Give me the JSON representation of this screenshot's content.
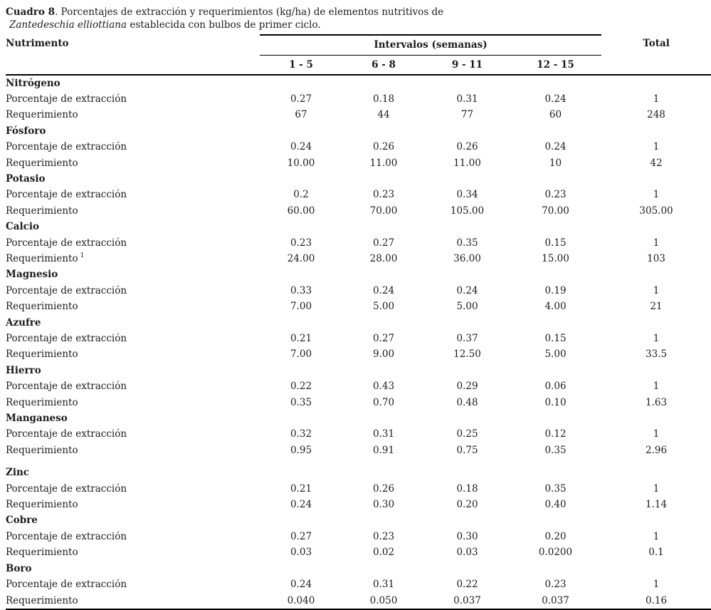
{
  "title": {
    "caption_label": "Cuadro 8",
    "caption_rest": ". Porcentajes de extracción y requerimientos (kg/ha) de elementos nutritivos de",
    "species": "Zantedeschia elliottiana",
    "caption_line2_rest": " establecida con bulbos de primer ciclo."
  },
  "table": {
    "nutrient_header": "Nutrimento",
    "intervals_header": "Intervalos (semanas)",
    "total_header": "Total",
    "interval_labels": [
      "1 - 5",
      "6 - 8",
      "9 - 11",
      "12 - 15"
    ],
    "row_labels": {
      "extraction": "Porcentaje de extracción",
      "requirement": "Requerimiento"
    },
    "groups": [
      {
        "name": "Nitrógeno",
        "extraction": [
          "0.27",
          "0.18",
          "0.31",
          "0.24",
          "1"
        ],
        "requirement": [
          "67",
          "44",
          "77",
          "60",
          "248"
        ],
        "req_footnote": "",
        "extra_gap": false
      },
      {
        "name": "Fósforo",
        "extraction": [
          "0.24",
          "0.26",
          "0.26",
          "0.24",
          "1"
        ],
        "requirement": [
          "10.00",
          "11.00",
          "11.00",
          "10",
          "42"
        ],
        "req_footnote": "",
        "extra_gap": false
      },
      {
        "name": "Potasio",
        "extraction": [
          "0.2",
          "0.23",
          "0.34",
          "0.23",
          "1"
        ],
        "requirement": [
          "60.00",
          "70.00",
          "105.00",
          "70.00",
          "305.00"
        ],
        "req_footnote": "",
        "extra_gap": false
      },
      {
        "name": "Calcio",
        "extraction": [
          "0.23",
          "0.27",
          "0.35",
          "0.15",
          "1"
        ],
        "requirement": [
          "24.00",
          "28.00",
          "36.00",
          "15.00",
          "103"
        ],
        "req_footnote": "1",
        "extra_gap": false
      },
      {
        "name": "Magnesio",
        "extraction": [
          "0.33",
          "0.24",
          "0.24",
          "0.19",
          "1"
        ],
        "requirement": [
          "7.00",
          "5.00",
          "5.00",
          "4.00",
          "21"
        ],
        "req_footnote": "",
        "extra_gap": false
      },
      {
        "name": "Azufre",
        "extraction": [
          "0.21",
          "0.27",
          "0.37",
          "0.15",
          "1"
        ],
        "requirement": [
          "7.00",
          "9.00",
          "12.50",
          "5.00",
          "33.5"
        ],
        "req_footnote": "",
        "extra_gap": false
      },
      {
        "name": "Hierro",
        "extraction": [
          "0.22",
          "0.43",
          "0.29",
          "0.06",
          "1"
        ],
        "requirement": [
          "0.35",
          "0.70",
          "0.48",
          "0.10",
          "1.63"
        ],
        "req_footnote": "",
        "extra_gap": false
      },
      {
        "name": "Manganeso",
        "extraction": [
          "0.32",
          "0.31",
          "0.25",
          "0.12",
          "1"
        ],
        "requirement": [
          "0.95",
          "0.91",
          "0.75",
          "0.35",
          "2.96"
        ],
        "req_footnote": "",
        "extra_gap": false
      },
      {
        "name": "Zinc",
        "extraction": [
          "0.21",
          "0.26",
          "0.18",
          "0.35",
          "1"
        ],
        "requirement": [
          "0.24",
          "0.30",
          "0.20",
          "0.40",
          "1.14"
        ],
        "req_footnote": "",
        "extra_gap": true
      },
      {
        "name": "Cobre",
        "extraction": [
          "0.27",
          "0.23",
          "0.30",
          "0.20",
          "1"
        ],
        "requirement": [
          "0.03",
          "0.02",
          "0.03",
          "0.0200",
          "0.1"
        ],
        "req_footnote": "",
        "extra_gap": false
      },
      {
        "name": "Boro",
        "extraction": [
          "0.24",
          "0.31",
          "0.22",
          "0.23",
          "1"
        ],
        "requirement": [
          "0.040",
          "0.050",
          "0.037",
          "0.037",
          "0.16"
        ],
        "req_footnote": "",
        "extra_gap": false
      }
    ]
  }
}
